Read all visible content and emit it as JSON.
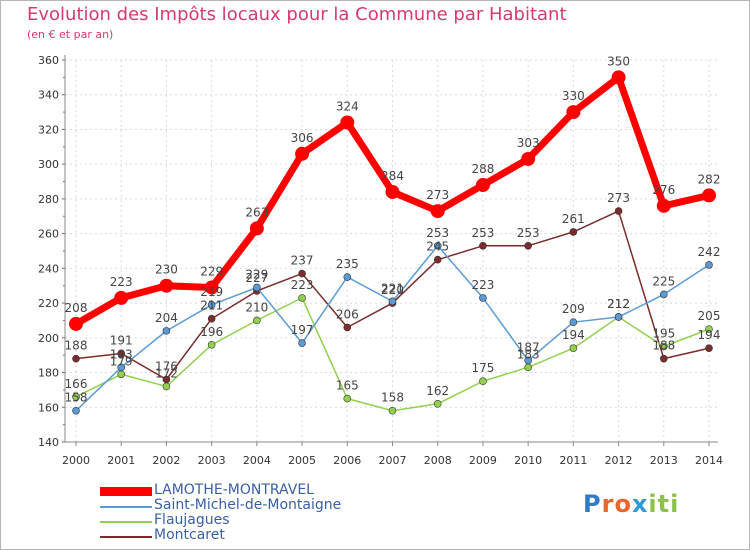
{
  "title": "Evolution des Impôts locaux pour la Commune par Habitant",
  "subtitle": "(en € et par an)",
  "logo": {
    "text": "Proxiti",
    "letter_colors": [
      "#2e7dc4",
      "#e8662b",
      "#e8662b",
      "#2e9bd6",
      "#8bc34a",
      "#8bc34a",
      "#8bc34a"
    ]
  },
  "chart_data": {
    "type": "line",
    "x": [
      2000,
      2001,
      2002,
      2003,
      2004,
      2005,
      2006,
      2007,
      2008,
      2009,
      2010,
      2011,
      2012,
      2013,
      2014
    ],
    "ylim": [
      140,
      360
    ],
    "yticks": [
      140,
      160,
      180,
      200,
      220,
      240,
      260,
      280,
      300,
      320,
      340,
      360
    ],
    "grid": true,
    "legend_position": "bottom-left",
    "series": [
      {
        "name": "LAMOTHE-MONTRAVEL",
        "color": "#ff0000",
        "values": [
          208,
          223,
          230,
          229,
          263,
          306,
          324,
          284,
          273,
          288,
          303,
          330,
          350,
          276,
          282
        ]
      },
      {
        "name": "Saint-Michel-de-Montaigne",
        "color": "#5b9bd5",
        "values": [
          158,
          183,
          204,
          219,
          229,
          197,
          235,
          221,
          253,
          223,
          187,
          209,
          212,
          225,
          242
        ]
      },
      {
        "name": "Flaujagues",
        "color": "#92d050",
        "values": [
          166,
          179,
          172,
          196,
          210,
          223,
          165,
          158,
          162,
          175,
          183,
          194,
          212,
          195,
          205
        ]
      },
      {
        "name": "Montcaret",
        "color": "#7b2c2c",
        "values": [
          188,
          191,
          176,
          211,
          227,
          237,
          206,
          220,
          245,
          253,
          253,
          261,
          273,
          188,
          194
        ]
      }
    ]
  }
}
